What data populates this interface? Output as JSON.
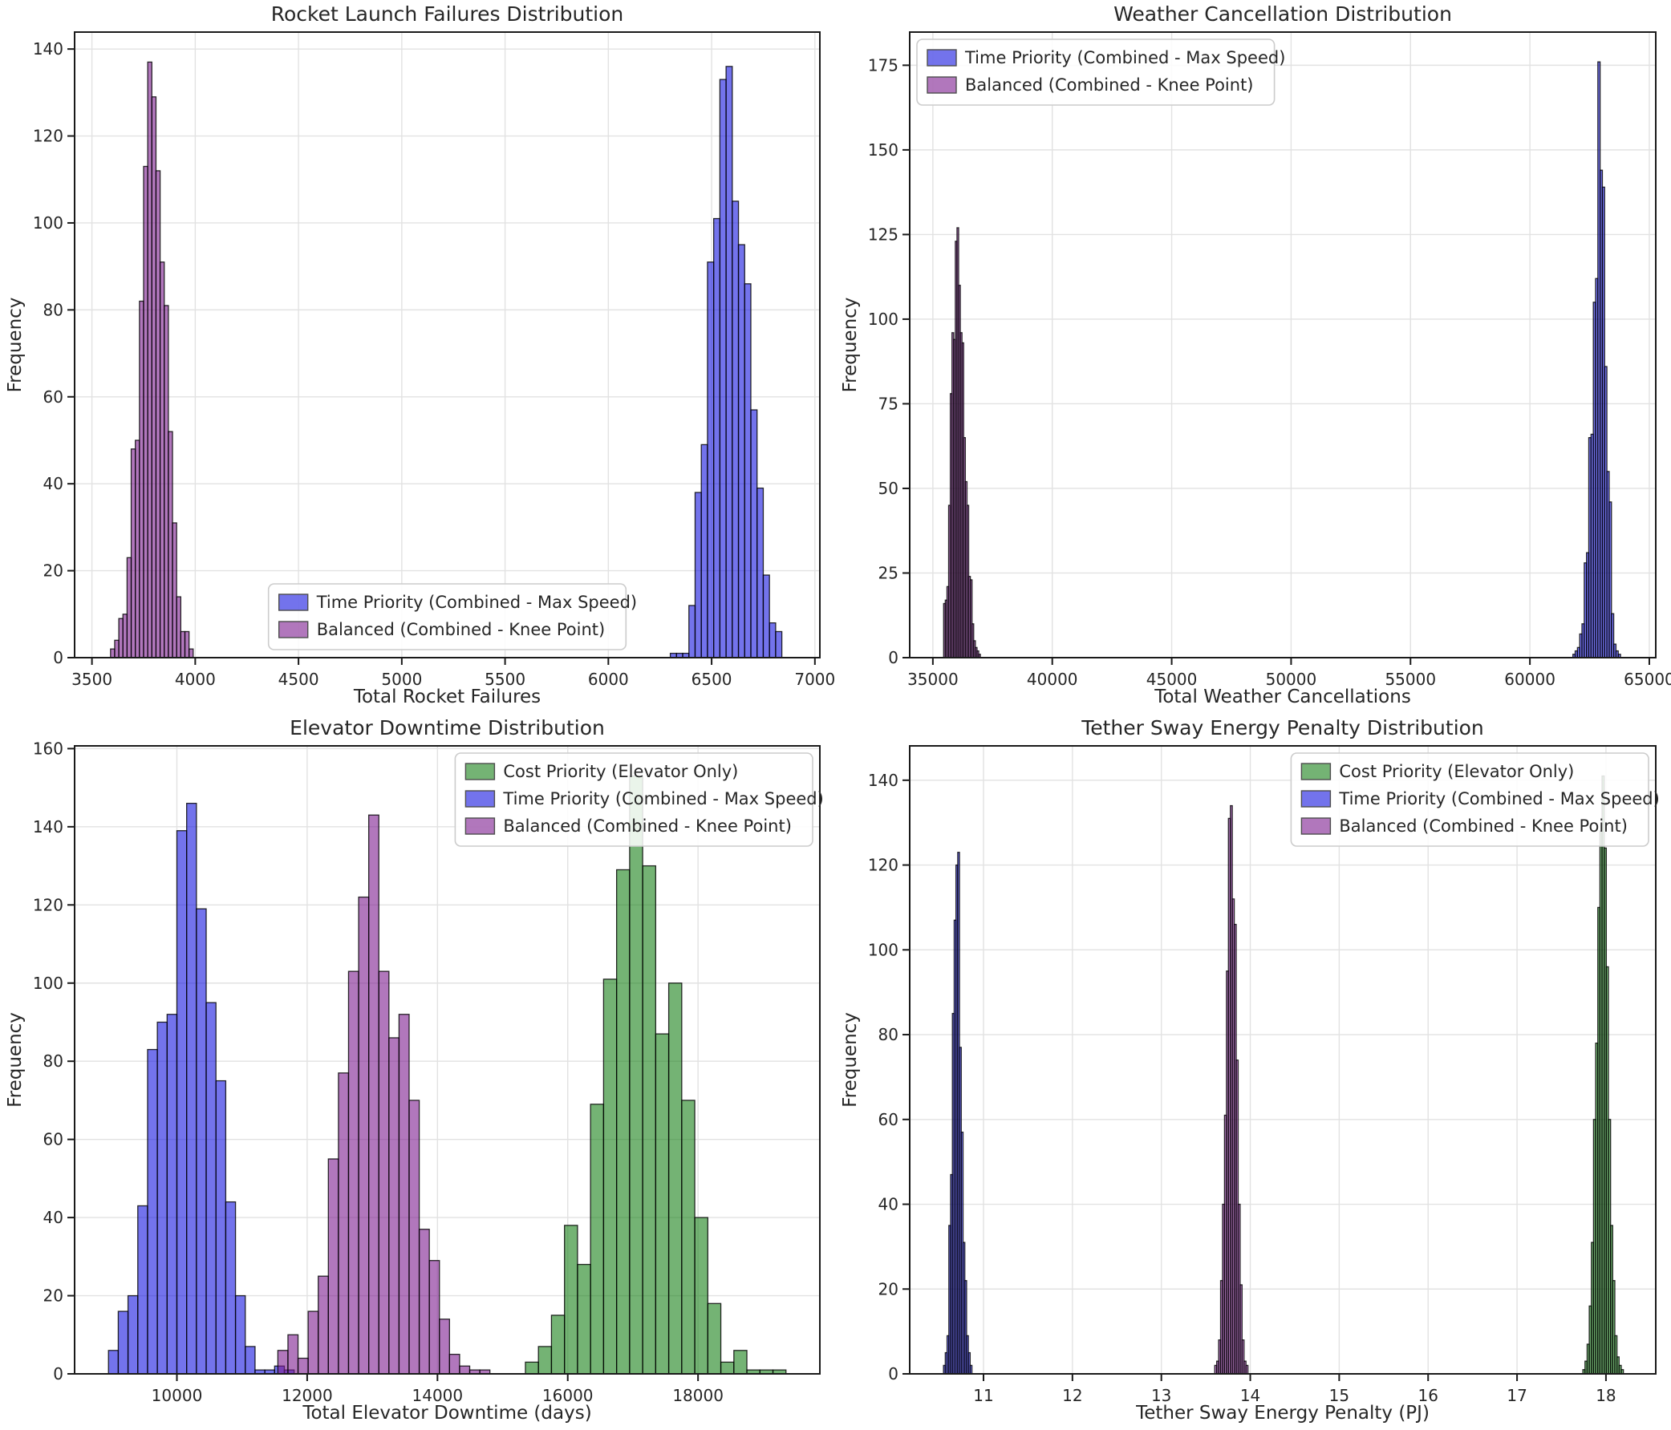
{
  "figure": {
    "background": "#ffffff",
    "spine_color": "#1a1a1a",
    "grid_color": "#e2e2e2",
    "tick_color": "#262626",
    "legend_border": "#cccccc",
    "legend_bg": "#ffffff",
    "bar_alpha": 0.6,
    "edge_color": "#000000"
  },
  "chart_data": [
    {
      "id": "rocket-launch-failures",
      "type": "bar",
      "title": "Rocket Launch Failures Distribution",
      "xlabel": "Total Rocket Failures",
      "ylabel": "Frequency",
      "xlim": [
        3416,
        7024
      ],
      "ylim": [
        0,
        143.9
      ],
      "xticks": [
        3500,
        4000,
        4500,
        5000,
        5500,
        6000,
        6500,
        7000
      ],
      "yticks": [
        0,
        20,
        40,
        60,
        80,
        100,
        120,
        140
      ],
      "grid": true,
      "legend_loc": "lower center",
      "series": [
        {
          "name": "Time Priority (Combined - Max Speed)",
          "color": "#1515e0",
          "bin_start": 6300,
          "bin_width": 30,
          "counts": [
            1,
            1,
            1,
            12,
            38,
            49,
            91,
            101,
            133,
            136,
            105,
            95,
            86,
            57,
            39,
            19,
            8,
            6
          ]
        },
        {
          "name": "Balanced (Combined - Knee Point)",
          "color": "#7d1c8f",
          "bin_start": 3590,
          "bin_width": 20,
          "counts": [
            2,
            4,
            9,
            10,
            23,
            48,
            50,
            82,
            113,
            137,
            129,
            112,
            91,
            81,
            52,
            31,
            14,
            6,
            6,
            2
          ]
        }
      ]
    },
    {
      "id": "weather-cancellation",
      "type": "bar",
      "title": "Weather Cancellation Distribution",
      "xlabel": "Total Weather Cancellations",
      "ylabel": "Frequency",
      "xlim": [
        34030,
        65270
      ],
      "ylim": [
        0,
        184.8
      ],
      "xticks": [
        35000,
        40000,
        45000,
        50000,
        55000,
        60000,
        65000
      ],
      "yticks": [
        0,
        25,
        50,
        75,
        100,
        125,
        150,
        175
      ],
      "grid": true,
      "legend_loc": "upper left",
      "series": [
        {
          "name": "Time Priority (Combined - Max Speed)",
          "color": "#1515e0",
          "bin_start": 61800,
          "bin_width": 95,
          "counts": [
            1,
            2,
            3,
            7,
            10,
            28,
            31,
            65,
            66,
            105,
            112,
            176,
            144,
            139,
            86,
            55,
            46,
            13,
            4,
            2,
            1
          ]
        },
        {
          "name": "Balanced (Combined - Knee Point)",
          "color": "#7d1c8f",
          "bin_start": 35450,
          "bin_width": 70,
          "counts": [
            16,
            17,
            21,
            45,
            78,
            96,
            94,
            123,
            127,
            110,
            96,
            93,
            65,
            52,
            45,
            24,
            23,
            10,
            5,
            3,
            2,
            1
          ]
        }
      ]
    },
    {
      "id": "elevator-downtime",
      "type": "bar",
      "title": "Elevator Downtime Distribution",
      "xlabel": "Total Elevator Downtime (days)",
      "ylabel": "Frequency",
      "xlim": [
        8430,
        19870
      ],
      "ylim": [
        0,
        160.7
      ],
      "xticks": [
        10000,
        12000,
        14000,
        16000,
        18000
      ],
      "yticks": [
        0,
        20,
        40,
        60,
        80,
        100,
        120,
        140,
        160
      ],
      "grid": true,
      "legend_loc": "upper right",
      "series": [
        {
          "name": "Cost Priority (Elevator Only)",
          "color": "#178017",
          "bin_start": 15350,
          "bin_width": 200,
          "counts": [
            3,
            7,
            15,
            38,
            28,
            69,
            101,
            129,
            153,
            130,
            87,
            100,
            70,
            40,
            18,
            3,
            6,
            1,
            1,
            1
          ]
        },
        {
          "name": "Time Priority (Combined - Max Speed)",
          "color": "#1515e0",
          "bin_start": 8950,
          "bin_width": 150,
          "counts": [
            6,
            16,
            20,
            43,
            83,
            90,
            92,
            139,
            146,
            119,
            95,
            75,
            44,
            20,
            7,
            1,
            1,
            2,
            1
          ]
        },
        {
          "name": "Balanced (Combined - Knee Point)",
          "color": "#7d1c8f",
          "bin_start": 11550,
          "bin_width": 155,
          "counts": [
            6,
            10,
            4,
            16,
            25,
            55,
            77,
            103,
            122,
            143,
            103,
            86,
            92,
            70,
            37,
            29,
            14,
            5,
            2,
            1,
            1
          ]
        }
      ]
    },
    {
      "id": "tether-sway-energy-penalty",
      "type": "bar",
      "title": "Tether Sway Energy Penalty Distribution",
      "xlabel": "Tether Sway Energy Penalty (PJ)",
      "ylabel": "Frequency",
      "xlim": [
        10.17,
        18.56
      ],
      "ylim": [
        0,
        148.1
      ],
      "xticks": [
        11,
        12,
        13,
        14,
        15,
        16,
        17,
        18
      ],
      "yticks": [
        0,
        20,
        40,
        60,
        80,
        100,
        120,
        140
      ],
      "grid": true,
      "legend_loc": "upper right",
      "series": [
        {
          "name": "Cost Priority (Elevator Only)",
          "color": "#178017",
          "bin_start": 17.74,
          "bin_width": 0.024,
          "counts": [
            1,
            3,
            7,
            16,
            31,
            60,
            78,
            110,
            128,
            141,
            124,
            96,
            60,
            35,
            22,
            9,
            4,
            2,
            1
          ]
        },
        {
          "name": "Time Priority (Combined - Max Speed)",
          "color": "#1515e0",
          "bin_start": 10.55,
          "bin_width": 0.02,
          "counts": [
            2,
            5,
            9,
            35,
            47,
            85,
            107,
            120,
            123,
            77,
            57,
            31,
            22,
            9,
            5,
            2
          ]
        },
        {
          "name": "Balanced (Combined - Knee Point)",
          "color": "#7d1c8f",
          "bin_start": 13.6,
          "bin_width": 0.022,
          "counts": [
            2,
            3,
            8,
            22,
            40,
            61,
            95,
            131,
            134,
            112,
            106,
            74,
            40,
            21,
            8,
            3,
            2
          ]
        }
      ]
    }
  ]
}
